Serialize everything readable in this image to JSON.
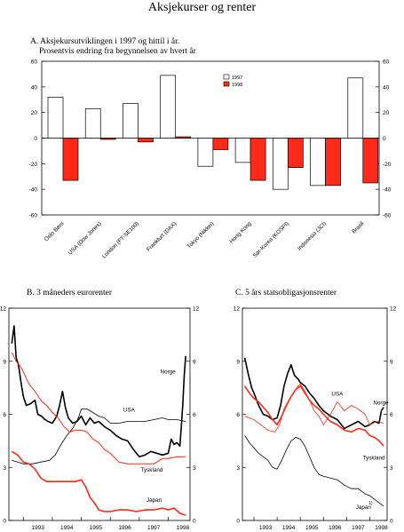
{
  "page": {
    "title": "Aksjekurser og renter",
    "panel_a": {
      "heading": "A.  Aksjekursutviklingen i 1997 og hittil i år.",
      "subheading": "Prosentvis endring fra begynnelsen av hvert år"
    },
    "panel_b": {
      "heading": "B.  3 måneders eurorenter"
    },
    "panel_c": {
      "heading": "C.  5 års statsobligasjonsrenter"
    }
  },
  "chart_data": [
    {
      "id": "A",
      "type": "bar",
      "title": "A.  Aksjekursutviklingen i 1997 og hittil i år.",
      "subtitle": "Prosentvis endring fra begynnelsen av hvert år",
      "categories": [
        "Oslo Børs",
        "USA (Dow Jones)",
        "London (FT-SE100)",
        "Frankfurt (DAX)",
        "Tokyo (Nikkei)",
        "Hong Kong",
        "Sør-Korea (KOSPI)",
        "Indonesia (JCI)",
        "Brasil"
      ],
      "series": [
        {
          "name": "1997",
          "color": "#ffffff",
          "values": [
            32,
            23,
            27,
            49,
            -22,
            -19,
            -40,
            -37,
            47
          ]
        },
        {
          "name": "1998",
          "color": "#ff2a1a",
          "values": [
            -33,
            -1,
            -3,
            1,
            -9,
            -33,
            -23,
            -37,
            -35
          ]
        }
      ],
      "ylim": [
        -60,
        60
      ],
      "yticks": [
        -60,
        -40,
        -20,
        0,
        20,
        40,
        60
      ],
      "legend": "top-right",
      "grid": false
    },
    {
      "id": "B",
      "type": "line",
      "title": "B.  3 måneders eurorenter",
      "ylim": [
        0,
        12
      ],
      "yticks": [
        0,
        3,
        6,
        9,
        12
      ],
      "xlim": [
        1992.5,
        1998.75
      ],
      "xticks": [
        "1993",
        "1994",
        "1995",
        "1996",
        "1997",
        "1998"
      ],
      "series": [
        {
          "name": "Norge",
          "color": "#000000",
          "width": 1.6,
          "x": [
            1992.6,
            1992.68,
            1992.75,
            1992.83,
            1992.92,
            1993.0,
            1993.1,
            1993.25,
            1993.4,
            1993.5,
            1993.62,
            1993.75,
            1993.85,
            1994.0,
            1994.15,
            1994.25,
            1994.35,
            1994.45,
            1994.55,
            1994.7,
            1994.85,
            1995.0,
            1995.15,
            1995.3,
            1995.45,
            1995.6,
            1995.8,
            1996.0,
            1996.2,
            1996.4,
            1996.6,
            1996.8,
            1997.0,
            1997.2,
            1997.4,
            1997.6,
            1997.8,
            1998.0,
            1998.1,
            1998.2,
            1998.3,
            1998.4,
            1998.45,
            1998.5,
            1998.55,
            1998.6
          ],
          "y": [
            10.0,
            11.0,
            9.2,
            8.8,
            7.8,
            7.0,
            6.5,
            6.6,
            6.8,
            6.0,
            5.9,
            5.7,
            5.6,
            5.5,
            5.9,
            6.5,
            7.3,
            6.4,
            5.8,
            5.5,
            5.6,
            5.9,
            5.4,
            5.8,
            5.5,
            5.6,
            5.3,
            5.1,
            4.8,
            4.6,
            4.5,
            4.0,
            3.6,
            3.7,
            3.9,
            3.8,
            3.7,
            3.8,
            4.6,
            4.3,
            4.4,
            4.2,
            5.3,
            6.5,
            8.2,
            9.3
          ]
        },
        {
          "name": "USA",
          "color": "#000000",
          "width": 0.8,
          "x": [
            1992.6,
            1992.8,
            1993.0,
            1993.3,
            1993.6,
            1993.9,
            1994.1,
            1994.3,
            1994.5,
            1994.7,
            1994.9,
            1995.0,
            1995.2,
            1995.4,
            1995.6,
            1995.8,
            1996.0,
            1996.3,
            1996.6,
            1996.9,
            1997.2,
            1997.5,
            1997.8,
            1998.0,
            1998.3,
            1998.6
          ],
          "y": [
            3.4,
            3.3,
            3.2,
            3.2,
            3.3,
            3.4,
            3.7,
            4.3,
            4.8,
            5.2,
            5.8,
            6.3,
            6.3,
            6.1,
            5.9,
            5.8,
            5.5,
            5.5,
            5.6,
            5.6,
            5.6,
            5.7,
            5.8,
            5.7,
            5.7,
            5.6
          ]
        },
        {
          "name": "Tyskland",
          "color": "#ff2a1a",
          "width": 1.0,
          "x": [
            1992.6,
            1992.75,
            1992.9,
            1993.0,
            1993.2,
            1993.4,
            1993.6,
            1993.8,
            1994.0,
            1994.2,
            1994.4,
            1994.6,
            1994.8,
            1995.0,
            1995.2,
            1995.4,
            1995.6,
            1995.8,
            1996.0,
            1996.3,
            1996.6,
            1996.9,
            1997.2,
            1997.5,
            1997.8,
            1998.0,
            1998.3,
            1998.6
          ],
          "y": [
            9.5,
            9.0,
            8.7,
            8.4,
            7.7,
            7.3,
            6.8,
            6.5,
            6.1,
            5.8,
            5.3,
            5.0,
            5.1,
            5.1,
            5.0,
            4.6,
            4.4,
            4.0,
            3.8,
            3.3,
            3.2,
            3.2,
            3.2,
            3.2,
            3.5,
            3.5,
            3.6,
            3.6
          ]
        },
        {
          "name": "Japan",
          "color": "#ff2a1a",
          "width": 1.6,
          "x": [
            1992.6,
            1992.8,
            1993.0,
            1993.2,
            1993.4,
            1993.6,
            1993.8,
            1994.0,
            1994.2,
            1994.4,
            1994.6,
            1994.8,
            1995.0,
            1995.15,
            1995.3,
            1995.45,
            1995.6,
            1995.8,
            1996.0,
            1996.3,
            1996.6,
            1996.9,
            1997.2,
            1997.5,
            1997.8,
            1998.0,
            1998.2,
            1998.4,
            1998.6
          ],
          "y": [
            3.9,
            3.7,
            3.3,
            3.2,
            2.9,
            2.4,
            2.2,
            2.2,
            2.2,
            2.2,
            2.2,
            2.2,
            2.3,
            1.9,
            1.3,
            1.0,
            0.6,
            0.5,
            0.5,
            0.6,
            0.6,
            0.5,
            0.6,
            0.6,
            0.7,
            0.6,
            0.7,
            0.4,
            0.3
          ]
        }
      ],
      "grid": false
    },
    {
      "id": "C",
      "type": "line",
      "title": "C.  5 års statsobligasjonsrenter",
      "ylim": [
        0,
        12
      ],
      "yticks": [
        0,
        3,
        6,
        9,
        12
      ],
      "xlim": [
        1992.5,
        1998.75
      ],
      "xticks": [
        "1993",
        "1994",
        "1995",
        "1996",
        "1997",
        "1998"
      ],
      "footnote": "1)",
      "series": [
        {
          "name": "Norge",
          "color": "#000000",
          "width": 1.6,
          "x": [
            1992.6,
            1992.75,
            1992.9,
            1993.0,
            1993.2,
            1993.4,
            1993.6,
            1993.8,
            1994.0,
            1994.15,
            1994.3,
            1994.45,
            1994.6,
            1994.75,
            1994.9,
            1995.0,
            1995.2,
            1995.4,
            1995.6,
            1995.8,
            1996.0,
            1996.3,
            1996.6,
            1996.9,
            1997.2,
            1997.5,
            1997.8,
            1998.0,
            1998.2,
            1998.4,
            1998.5,
            1998.6
          ],
          "y": [
            9.2,
            8.3,
            7.5,
            7.2,
            6.5,
            6.0,
            5.9,
            5.7,
            5.8,
            6.5,
            7.6,
            8.3,
            8.8,
            8.2,
            8.0,
            7.8,
            7.6,
            7.2,
            6.9,
            6.5,
            6.2,
            5.9,
            5.7,
            5.2,
            5.4,
            5.6,
            5.3,
            5.4,
            5.6,
            5.5,
            6.2,
            6.4
          ]
        },
        {
          "name": "USA",
          "color": "#ff2a1a",
          "width": 0.8,
          "x": [
            1992.6,
            1992.8,
            1993.0,
            1993.3,
            1993.6,
            1993.9,
            1994.1,
            1994.3,
            1994.5,
            1994.7,
            1994.9,
            1995.0,
            1995.2,
            1995.4,
            1995.6,
            1995.8,
            1996.0,
            1996.3,
            1996.6,
            1996.9,
            1997.2,
            1997.5,
            1997.8,
            1998.0,
            1998.3,
            1998.6
          ],
          "y": [
            5.9,
            5.8,
            5.7,
            5.4,
            5.1,
            5.0,
            5.4,
            6.3,
            6.8,
            7.2,
            7.6,
            7.7,
            7.3,
            6.8,
            6.2,
            5.9,
            5.4,
            6.0,
            6.7,
            6.2,
            6.5,
            6.3,
            6.0,
            5.4,
            5.6,
            5.5
          ]
        },
        {
          "name": "Tyskland",
          "color": "#ff2a1a",
          "width": 1.6,
          "x": [
            1992.6,
            1992.8,
            1993.0,
            1993.2,
            1993.4,
            1993.6,
            1993.8,
            1994.0,
            1994.2,
            1994.4,
            1994.6,
            1994.8,
            1995.0,
            1995.2,
            1995.4,
            1995.6,
            1995.8,
            1996.0,
            1996.3,
            1996.6,
            1996.9,
            1997.2,
            1997.5,
            1997.8,
            1998.0,
            1998.2,
            1998.4,
            1998.6
          ],
          "y": [
            7.6,
            7.2,
            6.9,
            6.7,
            6.4,
            6.1,
            5.7,
            5.4,
            5.9,
            6.5,
            7.0,
            7.4,
            7.6,
            7.2,
            6.8,
            6.5,
            6.3,
            6.0,
            5.6,
            5.4,
            5.1,
            5.0,
            5.2,
            5.1,
            4.8,
            4.7,
            4.5,
            4.2
          ]
        },
        {
          "name": "Japan",
          "color": "#000000",
          "width": 0.8,
          "x": [
            1992.6,
            1992.8,
            1993.0,
            1993.2,
            1993.4,
            1993.6,
            1993.8,
            1994.0,
            1994.2,
            1994.4,
            1994.6,
            1994.8,
            1995.0,
            1995.2,
            1995.4,
            1995.6,
            1995.8,
            1996.0,
            1996.3,
            1996.6,
            1996.9,
            1997.2,
            1997.5,
            1997.8,
            1998.0,
            1998.2,
            1998.4,
            1998.6
          ],
          "y": [
            4.8,
            4.4,
            4.1,
            3.8,
            3.6,
            3.4,
            3.0,
            2.9,
            3.4,
            4.0,
            4.5,
            4.7,
            4.6,
            4.2,
            3.6,
            3.0,
            2.6,
            2.5,
            2.4,
            2.3,
            2.0,
            1.8,
            1.8,
            1.5,
            1.4,
            1.2,
            1.0,
            0.8
          ]
        }
      ],
      "grid": false
    }
  ]
}
